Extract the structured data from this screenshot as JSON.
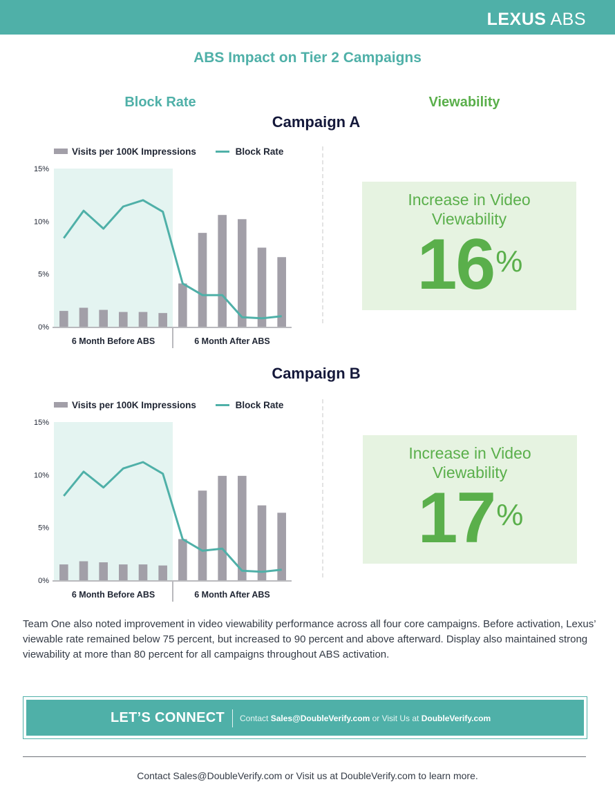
{
  "header": {
    "brand_bold": "LEXUS",
    "brand_light": "ABS"
  },
  "page_title": "ABS Impact on Tier 2 Campaigns",
  "columns": {
    "left": "Block Rate",
    "right": "Viewability"
  },
  "legend": {
    "bars": "Visits per 100K Impressions",
    "line": "Block Rate"
  },
  "campaigns": [
    {
      "title": "Campaign A",
      "stat_label_line1": "Increase in Video",
      "stat_label_line2": "Viewability",
      "stat_value": "16",
      "stat_unit": "%"
    },
    {
      "title": "Campaign B",
      "stat_label_line1": "Increase in Video",
      "stat_label_line2": "Viewability",
      "stat_value": "17",
      "stat_unit": "%"
    }
  ],
  "chart_data": [
    {
      "type": "bar",
      "title": "Campaign A",
      "categories": [
        "",
        "",
        "",
        "",
        "",
        "",
        "",
        "",
        "",
        "",
        "",
        ""
      ],
      "group_labels": [
        "6 Month Before ABS",
        "6 Month After ABS"
      ],
      "series": [
        {
          "name": "Visits per 100K Impressions",
          "kind": "bar",
          "values": [
            1.5,
            1.8,
            1.6,
            1.4,
            1.4,
            1.3,
            4.1,
            8.9,
            10.6,
            10.2,
            7.5,
            6.6
          ]
        },
        {
          "name": "Block Rate",
          "kind": "line",
          "values": [
            8.4,
            11.0,
            9.3,
            11.4,
            12.0,
            10.9,
            4.1,
            3.0,
            3.0,
            0.9,
            0.8,
            1.0
          ]
        }
      ],
      "yticks": [
        "0%",
        "5%",
        "10%",
        "15%"
      ],
      "ylim": [
        0,
        15
      ],
      "grid": false,
      "legend": "top-left"
    },
    {
      "type": "bar",
      "title": "Campaign B",
      "categories": [
        "",
        "",
        "",
        "",
        "",
        "",
        "",
        "",
        "",
        "",
        "",
        ""
      ],
      "group_labels": [
        "6 Month Before ABS",
        "6 Month After ABS"
      ],
      "series": [
        {
          "name": "Visits per 100K Impressions",
          "kind": "bar",
          "values": [
            1.5,
            1.8,
            1.7,
            1.5,
            1.5,
            1.4,
            3.9,
            8.5,
            9.9,
            9.9,
            7.1,
            6.4
          ]
        },
        {
          "name": "Block Rate",
          "kind": "line",
          "values": [
            8.0,
            10.3,
            8.8,
            10.6,
            11.2,
            10.1,
            3.9,
            2.8,
            3.0,
            0.9,
            0.8,
            1.0
          ]
        }
      ],
      "yticks": [
        "0%",
        "5%",
        "10%",
        "15%"
      ],
      "ylim": [
        0,
        15
      ],
      "grid": false,
      "legend": "top-left"
    }
  ],
  "body_text": "Team One also noted improvement in video viewability performance across all four core campaigns. Before activation, Lexus’ viewable rate remained below 75 percent, but increased to 90 percent and above afterward. Display also maintained strong viewability at more than 80 percent for all campaigns throughout ABS activation.",
  "cta": {
    "heading": "LET’S CONNECT",
    "contact_prefix": "Contact ",
    "email": "Sales@DoubleVerify.com",
    "middle": " or Visit Us at ",
    "site": "DoubleVerify.com"
  },
  "footer": "Contact Sales@DoubleVerify.com or Visit us at DoubleVerify.com to learn more.",
  "colors": {
    "teal": "#4fb0a8",
    "green": "#5aaf4b",
    "bar": "#a29fa8",
    "before_shade": "#e4f4f1",
    "green_box": "#e6f3e1",
    "navy": "#14183a"
  }
}
